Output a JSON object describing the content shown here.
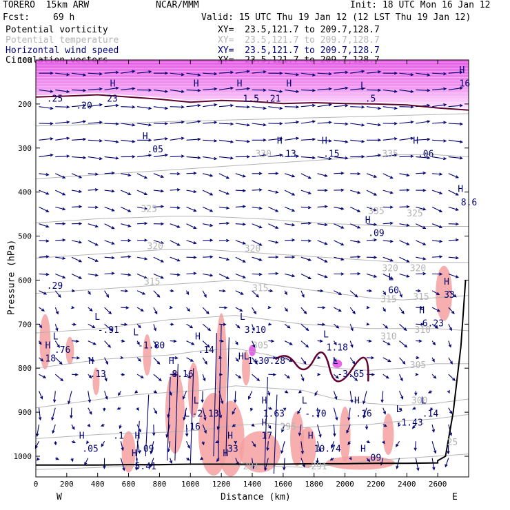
{
  "header": {
    "model": "TORERO  15km ARW",
    "org": "NCAR/MMM",
    "init": "Init: 18 UTC Mon 16 Jan 12",
    "fcst_label": "Fcst:",
    "fcst_value": "69 h",
    "valid": "Valid: 15 UTC Thu 19 Jan 12 (12 LST Thu 19 Jan 12)"
  },
  "legend": [
    {
      "label": "Potential vorticity",
      "xy": "XY=  23.5,121.7 to 209.7,128.7",
      "color": "#000000"
    },
    {
      "label": "Potential temperature",
      "xy": "XY=  23.5,121.7 to 209.7,128.7",
      "color": "#b4b4b4"
    },
    {
      "label": "Horizontal wind speed",
      "xy": "XY=  23.5,121.7 to 209.7,128.7",
      "color": "#000080"
    },
    {
      "label": "Circulation vectors",
      "xy": "XY=  23.5,121.7 to 209.7,128.7",
      "color": "#000000"
    }
  ],
  "colors": {
    "pv_low": "#f5a0a0",
    "pv_high": "#e040e0",
    "theta": "#b4b4b4",
    "wind": "#000070",
    "pv_contour": "#600030",
    "terrain": "#000000"
  },
  "chart_data": {
    "type": "cross-section",
    "xlabel": "Distance (km)",
    "ylabel": "Pressure (hPa)",
    "xlim": [
      0,
      2800
    ],
    "ylim": [
      1050,
      100
    ],
    "x_ticks": [
      0,
      200,
      400,
      600,
      800,
      1000,
      1200,
      1400,
      1600,
      1800,
      2000,
      2200,
      2400,
      2600
    ],
    "y_ticks": [
      100,
      200,
      300,
      400,
      500,
      600,
      700,
      800,
      900,
      1000
    ],
    "x_end_labels": {
      "left": "W",
      "right": "E"
    },
    "theta_contours": [
      {
        "value": 290,
        "p": [
          1030,
          1028,
          1025,
          1022,
          1020,
          1018,
          1020,
          1022,
          1025,
          1020,
          1010,
          1005,
          1000,
          995
        ]
      },
      {
        "value": 295,
        "p": [
          960,
          955,
          950,
          948,
          945,
          940,
          930,
          925,
          935,
          930,
          928,
          920,
          915,
          905
        ]
      },
      {
        "value": 300,
        "p": [
          890,
          880,
          870,
          860,
          855,
          850,
          840,
          845,
          850,
          870,
          880,
          885,
          880,
          870
        ]
      },
      {
        "value": 305,
        "p": [
          800,
          790,
          780,
          775,
          770,
          760,
          755,
          770,
          790,
          800,
          805,
          800,
          790,
          790
        ]
      },
      {
        "value": 310,
        "p": [
          720,
          715,
          710,
          700,
          690,
          685,
          680,
          690,
          700,
          705,
          710,
          710,
          710,
          715
        ]
      },
      {
        "value": 315,
        "p": [
          630,
          625,
          620,
          615,
          610,
          605,
          600,
          610,
          620,
          630,
          640,
          645,
          640,
          635
        ]
      },
      {
        "value": 320,
        "p": [
          550,
          545,
          540,
          535,
          530,
          530,
          535,
          540,
          545,
          550,
          555,
          560,
          560,
          560
        ]
      },
      {
        "value": 325,
        "p": [
          470,
          465,
          460,
          458,
          455,
          455,
          458,
          462,
          468,
          472,
          475,
          478,
          478,
          478
        ]
      },
      {
        "value": 330,
        "p": [
          370,
          365,
          360,
          355,
          350,
          345,
          340,
          335,
          330,
          325,
          320,
          315,
          315,
          320
        ]
      },
      {
        "value": 340,
        "p": [
          250,
          248,
          245,
          243,
          240,
          238,
          236,
          234,
          232,
          230,
          228,
          226,
          224,
          222
        ]
      }
    ],
    "terrain_p": [
      1020,
      1020,
      1020,
      1019,
      1019,
      1018,
      1018,
      1018,
      1018,
      1017,
      1017,
      1016,
      1016,
      1015
    ],
    "terrain_right_rise": [
      [
        2600,
        1010
      ],
      [
        2650,
        1000
      ],
      [
        2700,
        900
      ],
      [
        2750,
        750
      ],
      [
        2780,
        600
      ]
    ],
    "tropopause_p": [
      180,
      178,
      175,
      180,
      185,
      192,
      188,
      190,
      195,
      193,
      195,
      196,
      198,
      205,
      210
    ],
    "labels": [
      {
        "t": "H",
        "x": 60,
        "p": 755
      },
      {
        "t": "18",
        "x": 60,
        "p": 785
      },
      {
        "t": "L",
        "x": 110,
        "p": 735
      },
      {
        "t": ".76",
        "x": 120,
        "p": 765
      },
      {
        "t": "H",
        "x": 340,
        "p": 790
      },
      {
        "t": ".13",
        "x": 350,
        "p": 820
      },
      {
        "t": "L",
        "x": 380,
        "p": 690
      },
      {
        "t": "-.91",
        "x": 400,
        "p": 720
      },
      {
        "t": "L",
        "x": 630,
        "p": 725
      },
      {
        "t": "-1.80",
        "x": 660,
        "p": 755
      },
      {
        "t": "H",
        "x": 860,
        "p": 790
      },
      {
        "t": "8.16",
        "x": 880,
        "p": 820
      },
      {
        "t": "H",
        "x": 1030,
        "p": 735
      },
      {
        "t": ".14",
        "x": 1050,
        "p": 765
      },
      {
        "t": "L",
        "x": 1320,
        "p": 690
      },
      {
        "t": "3.10",
        "x": 1350,
        "p": 720
      },
      {
        "t": "HL",
        "x": 1310,
        "p": 780
      },
      {
        "t": "1+30.28",
        "x": 1370,
        "p": 790
      },
      {
        "t": "L",
        "x": 1860,
        "p": 730
      },
      {
        "t": "1.18",
        "x": 1880,
        "p": 760
      },
      {
        "t": "L",
        "x": 1920,
        "p": 790
      },
      {
        "t": "-3.65",
        "x": 1950,
        "p": 820
      },
      {
        "t": "H",
        "x": 2480,
        "p": 675
      },
      {
        "t": "6.23",
        "x": 2500,
        "p": 705
      },
      {
        "t": "H",
        "x": 2640,
        "p": 610
      },
      {
        "t": "33",
        "x": 2640,
        "p": 640
      },
      {
        "t": "L",
        "x": 2280,
        "p": 600
      },
      {
        "t": "60",
        "x": 2280,
        "p": 630
      },
      {
        "t": "H",
        "x": 2130,
        "p": 470
      },
      {
        "t": ".09",
        "x": 2150,
        "p": 500
      },
      {
        "t": "H",
        "x": 2730,
        "p": 400
      },
      {
        "t": "8.6",
        "x": 2750,
        "p": 430
      },
      {
        "t": ".29",
        "x": 70,
        "p": 620
      },
      {
        "t": "L",
        "x": 1020,
        "p": 880
      },
      {
        "t": "-2.13",
        "x": 1010,
        "p": 910
      },
      {
        "t": "L",
        "x": 960,
        "p": 910
      },
      {
        "t": ".16",
        "x": 960,
        "p": 940
      },
      {
        "t": "H",
        "x": 1460,
        "p": 880
      },
      {
        "t": "1.63",
        "x": 1470,
        "p": 910
      },
      {
        "t": "H",
        "x": 1460,
        "p": 930
      },
      {
        "t": "17",
        "x": 1460,
        "p": 960
      },
      {
        "t": "L",
        "x": 1720,
        "p": 880
      },
      {
        "t": "-.70",
        "x": 1740,
        "p": 910
      },
      {
        "t": "H",
        "x": 2060,
        "p": 880
      },
      {
        "t": ".16",
        "x": 2070,
        "p": 910
      },
      {
        "t": "L",
        "x": 2330,
        "p": 900
      },
      {
        "t": "-1.43",
        "x": 2330,
        "p": 930
      },
      {
        "t": "L",
        "x": 2490,
        "p": 880
      },
      {
        "t": ".14",
        "x": 2500,
        "p": 910
      },
      {
        "t": "H",
        "x": 280,
        "p": 960
      },
      {
        "t": ".05",
        "x": 300,
        "p": 990
      },
      {
        "t": "H",
        "x": 640,
        "p": 960
      },
      {
        "t": ".09",
        "x": 660,
        "p": 990
      },
      {
        "t": "H",
        "x": 1240,
        "p": 960
      },
      {
        "t": "33",
        "x": 1240,
        "p": 990
      },
      {
        "t": "H",
        "x": 1760,
        "p": 960
      },
      {
        "t": "10.74",
        "x": 1800,
        "p": 990
      },
      {
        "t": "H",
        "x": 2100,
        "p": 990
      },
      {
        "t": ".09",
        "x": 2130,
        "p": 1010
      },
      {
        "t": "H",
        "x": 620,
        "p": 1000
      },
      {
        "t": "5.41",
        "x": 640,
        "p": 1030
      },
      {
        "t": ".1",
        "x": 500,
        "p": 960
      },
      {
        "t": "H",
        "x": 1210,
        "p": 1000
      },
      {
        "t": "H",
        "x": 690,
        "p": 280
      },
      {
        "t": ".05",
        "x": 720,
        "p": 310
      },
      {
        "t": "H",
        "x": 1560,
        "p": 290
      },
      {
        "t": ".13",
        "x": 1580,
        "p": 320
      },
      {
        "t": "H",
        "x": 1850,
        "p": 290
      },
      {
        "t": ".15",
        "x": 1860,
        "p": 320
      },
      {
        "t": "H",
        "x": 2440,
        "p": 290
      },
      {
        "t": ".06",
        "x": 2470,
        "p": 320
      },
      {
        "t": "H",
        "x": 2740,
        "p": 130
      },
      {
        "t": "16",
        "x": 2740,
        "p": 160
      },
      {
        "t": "H",
        "x": 480,
        "p": 160
      },
      {
        "t": "H",
        "x": 1020,
        "p": 160
      },
      {
        "t": "H",
        "x": 1300,
        "p": 160
      },
      {
        "t": "H",
        "x": 1620,
        "p": 160
      },
      {
        "t": ".25",
        "x": 70,
        "p": 195
      },
      {
        "t": "23",
        "x": 460,
        "p": 195
      },
      {
        "t": ".20",
        "x": 260,
        "p": 210
      },
      {
        "t": ".21",
        "x": 1480,
        "p": 195
      },
      {
        "t": ".5",
        "x": 2130,
        "p": 195
      },
      {
        "t": "L",
        "x": 2100,
        "p": 165
      },
      {
        "t": "1.5",
        "x": 1340,
        "p": 195
      }
    ],
    "theta_labels": [
      {
        "t": "335",
        "x": 2150,
        "p": 450
      },
      {
        "t": "325",
        "x": 2400,
        "p": 455
      },
      {
        "t": "320",
        "x": 1350,
        "p": 535
      },
      {
        "t": "320",
        "x": 2240,
        "p": 580
      },
      {
        "t": "320",
        "x": 2420,
        "p": 580
      },
      {
        "t": "320",
        "x": 720,
        "p": 530
      },
      {
        "t": "315",
        "x": 700,
        "p": 610
      },
      {
        "t": "315",
        "x": 1400,
        "p": 625
      },
      {
        "t": "315",
        "x": 2230,
        "p": 650
      },
      {
        "t": "315",
        "x": 2440,
        "p": 645
      },
      {
        "t": "310",
        "x": 2230,
        "p": 735
      },
      {
        "t": "310",
        "x": 2450,
        "p": 720
      },
      {
        "t": "305",
        "x": 1400,
        "p": 755
      },
      {
        "t": "305",
        "x": 2420,
        "p": 800
      },
      {
        "t": "300",
        "x": 2430,
        "p": 880
      },
      {
        "t": "295",
        "x": 1580,
        "p": 940
      },
      {
        "t": "291",
        "x": 1780,
        "p": 1030
      },
      {
        "t": "291",
        "x": 1340,
        "p": 1030
      },
      {
        "t": "25",
        "x": 2660,
        "p": 975
      },
      {
        "t": "325",
        "x": 680,
        "p": 445
      },
      {
        "t": "330",
        "x": 1420,
        "p": 320
      },
      {
        "t": "335",
        "x": 2240,
        "p": 320
      }
    ]
  }
}
